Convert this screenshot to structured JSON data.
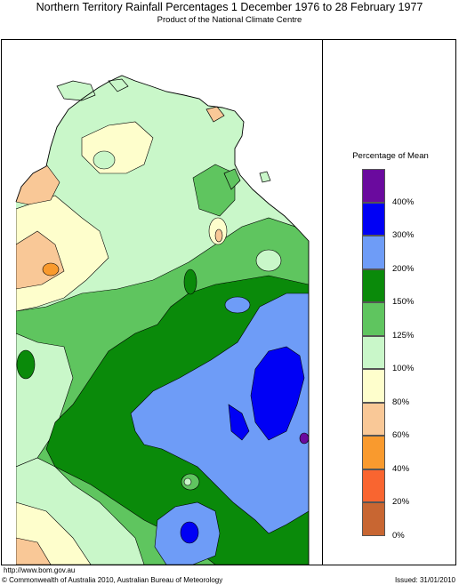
{
  "header": {
    "title": "Northern Territory Rainfall Percentages 1 December 1976 to 28 February 1977",
    "subtitle": "Product of the National Climate Centre"
  },
  "legend": {
    "title": "Percentage of Mean",
    "bands": [
      {
        "color": "#6a0a9e"
      },
      {
        "color": "#0000f5"
      },
      {
        "color": "#6e9cf7"
      },
      {
        "color": "#0a8a0a"
      },
      {
        "color": "#5fc55f"
      },
      {
        "color": "#c9f7c9"
      },
      {
        "color": "#fefecc"
      },
      {
        "color": "#f9c897"
      },
      {
        "color": "#f99a2e"
      },
      {
        "color": "#f96530"
      },
      {
        "color": "#c86632"
      }
    ],
    "ticks": [
      "400%",
      "300%",
      "200%",
      "150%",
      "125%",
      "100%",
      "80%",
      "60%",
      "40%",
      "20%",
      "0%"
    ]
  },
  "footer": {
    "url": "http://www.bom.gov.au",
    "copyright": "© Commonwealth of Australia 2010, Australian Bureau of Meteorology",
    "issued": "Issued: 31/01/2010"
  }
}
